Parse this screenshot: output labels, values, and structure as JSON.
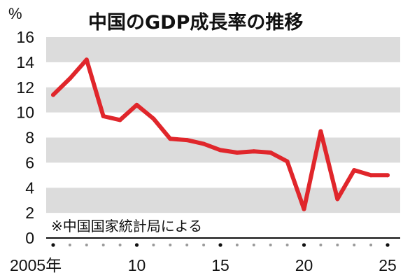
{
  "chart_data": {
    "type": "line",
    "title": "中国のGDP成長率の推移",
    "y_unit": "%",
    "note": "※中国国家統計局による",
    "ylim": [
      0,
      16
    ],
    "y_ticks": [
      0,
      2,
      4,
      6,
      8,
      10,
      12,
      14,
      16
    ],
    "x_range": [
      2005,
      2025
    ],
    "x_tick_labels": [
      {
        "x": 2005,
        "label": "2005年"
      },
      {
        "x": 2010,
        "label": "10"
      },
      {
        "x": 2015,
        "label": "15"
      },
      {
        "x": 2020,
        "label": "20"
      },
      {
        "x": 2025,
        "label": "25"
      }
    ],
    "grid": "alternating horizontal bands",
    "line_color": "#e0262b",
    "band_color": "#dcdcdc",
    "series": [
      {
        "x": [
          2005,
          2006,
          2007,
          2008,
          2009,
          2010,
          2011,
          2012,
          2013,
          2014,
          2015,
          2016,
          2017,
          2018,
          2019,
          2020,
          2021,
          2022,
          2023,
          2024,
          2025
        ],
        "values": [
          11.4,
          12.7,
          14.2,
          9.7,
          9.4,
          10.6,
          9.5,
          7.9,
          7.8,
          7.5,
          7.0,
          6.8,
          6.9,
          6.8,
          6.1,
          2.3,
          8.5,
          3.1,
          5.4,
          5.0,
          5.0
        ]
      }
    ]
  }
}
